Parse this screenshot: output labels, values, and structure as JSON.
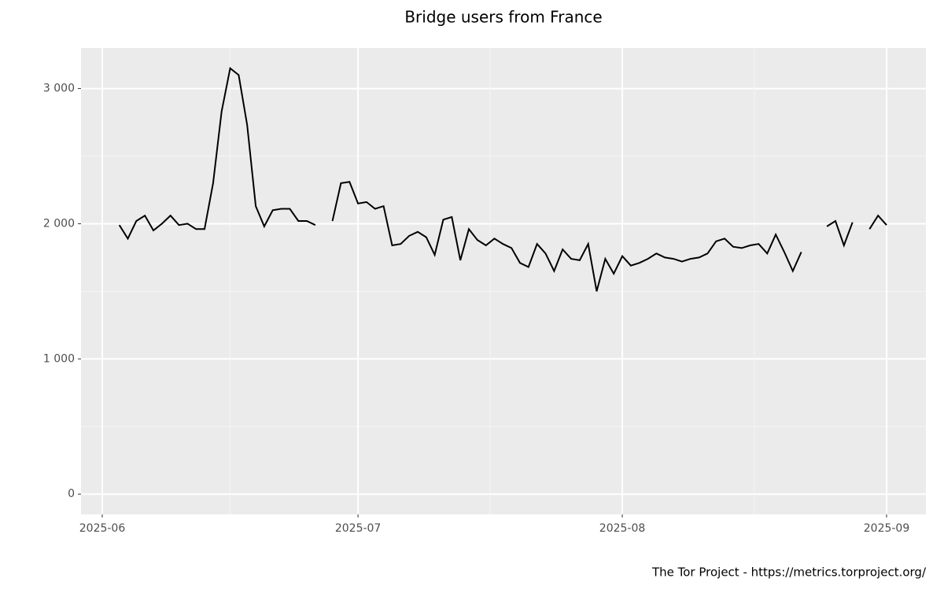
{
  "chart_data": {
    "type": "line",
    "title": "Bridge users from France",
    "caption": "The Tor Project - https://metrics.torproject.org/",
    "categories": [
      "2025-06",
      null,
      null,
      null,
      null,
      null,
      null,
      null,
      null,
      null,
      null,
      null,
      null,
      null,
      null,
      null,
      null,
      null,
      null,
      null,
      null,
      null,
      null,
      null,
      null,
      null,
      null,
      null,
      null,
      null,
      "2025-07",
      null,
      null,
      null,
      null,
      null,
      null,
      null,
      null,
      null,
      null,
      null,
      null,
      null,
      null,
      null,
      null,
      null,
      null,
      null,
      null,
      null,
      null,
      null,
      null,
      null,
      null,
      null,
      null,
      null,
      null,
      "2025-08",
      null,
      null,
      null,
      null,
      null,
      null,
      null,
      null,
      null,
      null,
      null,
      null,
      null,
      null,
      null,
      null,
      null,
      null,
      null,
      null,
      null,
      null,
      null,
      null,
      null,
      null,
      null,
      null,
      null,
      null,
      "2025-09"
    ],
    "series": [
      {
        "color": "#000000",
        "values": [
          null,
          null,
          1990,
          1890,
          2020,
          2060,
          1950,
          2000,
          2060,
          1990,
          2000,
          1960,
          1960,
          2300,
          2830,
          3150,
          3100,
          2730,
          2130,
          1980,
          2100,
          2110,
          2110,
          2020,
          2020,
          1990,
          null,
          2020,
          2300,
          2310,
          2150,
          2160,
          2110,
          2130,
          1840,
          1850,
          1910,
          1940,
          1900,
          1770,
          2030,
          2050,
          1730,
          1960,
          1880,
          1840,
          1890,
          1850,
          1820,
          1710,
          1680,
          1850,
          1780,
          1650,
          1810,
          1740,
          1730,
          1850,
          1500,
          1740,
          1630,
          1760,
          1690,
          1710,
          1740,
          1780,
          1750,
          1740,
          1720,
          1740,
          1750,
          1780,
          1870,
          1890,
          1830,
          1820,
          1840,
          1850,
          1780,
          1920,
          1790,
          1650,
          1790,
          null,
          null,
          1980,
          2020,
          1840,
          2010,
          null,
          1960,
          2060,
          1990
        ]
      }
    ],
    "ylim": [
      -150,
      3300
    ],
    "yticks": [
      {
        "value": 0,
        "label": "0"
      },
      {
        "value": 1000,
        "label": "1 000"
      },
      {
        "value": 2000,
        "label": "2 000"
      },
      {
        "value": 3000,
        "label": "3 000"
      }
    ],
    "grid": true
  }
}
